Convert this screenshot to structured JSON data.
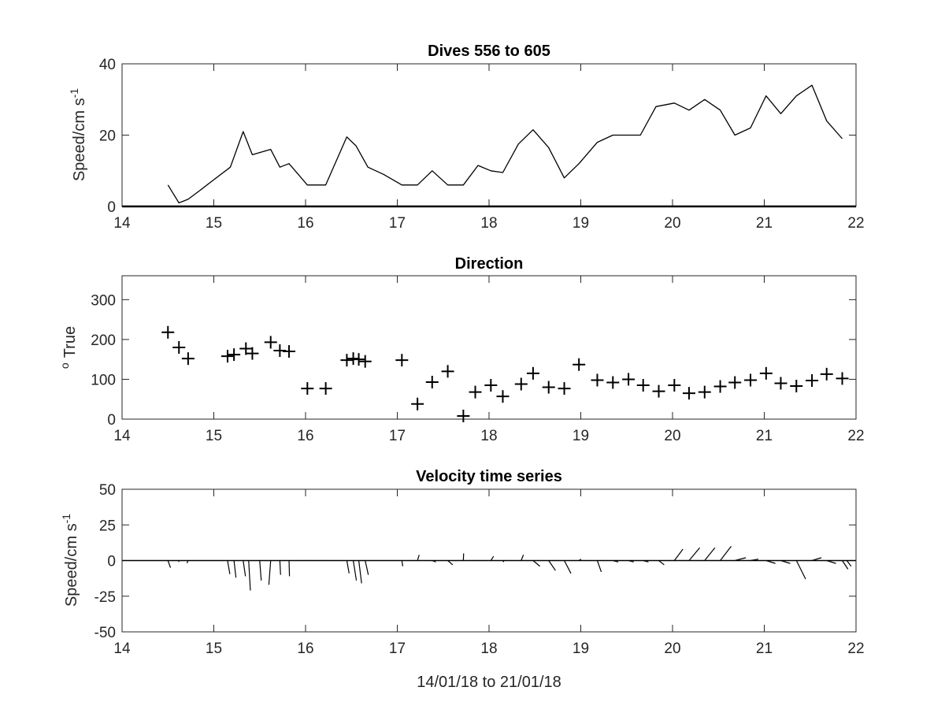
{
  "chart_data": [
    {
      "type": "line",
      "title": "Dives 556 to 605",
      "ylabel_base": "Speed/cm s",
      "ylabel_sup": "-1",
      "xlabel": "",
      "xlim": [
        14,
        22
      ],
      "ylim": [
        0,
        40
      ],
      "xticks": [
        "14",
        "15",
        "16",
        "17",
        "18",
        "19",
        "20",
        "21",
        "22"
      ],
      "yticks": [
        "0",
        "20",
        "40"
      ],
      "series": [
        {
          "x": [
            14.5,
            14.62,
            14.72,
            14.85,
            15.0,
            15.18,
            15.32,
            15.42,
            15.62,
            15.72,
            15.82,
            16.02,
            16.22,
            16.45,
            16.55,
            16.68,
            16.85,
            17.05,
            17.22,
            17.38,
            17.55,
            17.72,
            17.88,
            18.02,
            18.15,
            18.32,
            18.48,
            18.65,
            18.82,
            18.98,
            19.18,
            19.35,
            19.5,
            19.65,
            19.82,
            20.02,
            20.18,
            20.35,
            20.52,
            20.68,
            20.85,
            21.02,
            21.18,
            21.35,
            21.52,
            21.68,
            21.85
          ],
          "y": [
            6,
            1,
            2,
            4.5,
            7.5,
            11,
            21,
            14.5,
            16,
            11,
            12,
            6,
            6,
            19.5,
            17,
            11,
            9,
            6,
            6,
            10,
            6,
            6,
            11.5,
            10,
            9.5,
            17.5,
            21.5,
            16.5,
            8,
            12,
            18,
            20,
            20,
            20,
            28,
            29,
            27,
            30,
            27,
            20,
            22,
            31,
            26,
            31,
            34,
            24,
            19
          ]
        },
        {
          "x": [
            14,
            22
          ],
          "y": [
            0,
            0
          ]
        }
      ]
    },
    {
      "type": "scatter",
      "title": "Direction",
      "ylabel_base": "True",
      "ylabel_sup": "o",
      "xlabel": "",
      "xlim": [
        14,
        22
      ],
      "ylim": [
        0,
        360
      ],
      "xticks": [
        "14",
        "15",
        "16",
        "17",
        "18",
        "19",
        "20",
        "21",
        "22"
      ],
      "yticks": [
        "0",
        "100",
        "200",
        "300"
      ],
      "x": [
        14.5,
        14.62,
        14.72,
        15.15,
        15.22,
        15.35,
        15.42,
        15.62,
        15.72,
        15.82,
        16.02,
        16.22,
        16.45,
        16.52,
        16.58,
        16.65,
        17.05,
        17.22,
        17.38,
        17.55,
        17.72,
        17.85,
        18.02,
        18.15,
        18.35,
        18.48,
        18.65,
        18.82,
        18.98,
        19.18,
        19.35,
        19.52,
        19.68,
        19.85,
        20.02,
        20.18,
        20.35,
        20.52,
        20.68,
        20.85,
        21.02,
        21.18,
        21.35,
        21.52,
        21.68,
        21.85
      ],
      "y": [
        218,
        180,
        152,
        158,
        162,
        177,
        165,
        193,
        172,
        170,
        77,
        77,
        148,
        152,
        150,
        145,
        148,
        38,
        93,
        120,
        8,
        68,
        85,
        57,
        88,
        115,
        80,
        77,
        137,
        98,
        92,
        100,
        85,
        70,
        85,
        65,
        68,
        82,
        92,
        98,
        115,
        90,
        83,
        97,
        113,
        102
      ]
    },
    {
      "type": "line",
      "title": "Velocity time series",
      "ylabel_base": "Speed/cm s",
      "ylabel_sup": "-1",
      "xlabel": "14/01/18 to 21/01/18",
      "xlim": [
        14,
        22
      ],
      "ylim": [
        -50,
        50
      ],
      "xticks": [
        "14",
        "15",
        "16",
        "17",
        "18",
        "19",
        "20",
        "21",
        "22"
      ],
      "yticks": [
        "50",
        "25",
        "0",
        "-25",
        "-50"
      ],
      "sticks": [
        {
          "t": 14.5,
          "u": 1.8,
          "v": -5
        },
        {
          "t": 14.62,
          "u": -0.1,
          "v": -1
        },
        {
          "t": 14.72,
          "u": -0.8,
          "v": -1.8
        },
        {
          "t": 15.15,
          "u": 1.6,
          "v": -9.5
        },
        {
          "t": 15.22,
          "u": 1.4,
          "v": -12
        },
        {
          "t": 15.32,
          "u": 1.6,
          "v": -11
        },
        {
          "t": 15.38,
          "u": 1.2,
          "v": -21
        },
        {
          "t": 15.5,
          "u": 1.1,
          "v": -14
        },
        {
          "t": 15.62,
          "u": -1.3,
          "v": -17
        },
        {
          "t": 15.72,
          "u": 0.5,
          "v": -10
        },
        {
          "t": 15.82,
          "u": 0.3,
          "v": -11
        },
        {
          "t": 16.02,
          "u": 0.4,
          "v": 0
        },
        {
          "t": 16.22,
          "u": 0.4,
          "v": 0
        },
        {
          "t": 16.45,
          "u": 1.6,
          "v": -9
        },
        {
          "t": 16.52,
          "u": 2.2,
          "v": -14
        },
        {
          "t": 16.58,
          "u": 2.0,
          "v": -16
        },
        {
          "t": 16.65,
          "u": 2.2,
          "v": -10
        },
        {
          "t": 17.05,
          "u": 0.6,
          "v": -4
        },
        {
          "t": 17.22,
          "u": 1.2,
          "v": 4
        },
        {
          "t": 17.38,
          "u": 2.6,
          "v": -1
        },
        {
          "t": 17.55,
          "u": 3.5,
          "v": -3
        },
        {
          "t": 17.72,
          "u": 0.2,
          "v": 5
        },
        {
          "t": 17.85,
          "u": 0.3,
          "v": 0
        },
        {
          "t": 18.02,
          "u": 1.9,
          "v": 3
        },
        {
          "t": 18.15,
          "u": 0.7,
          "v": -1
        },
        {
          "t": 18.35,
          "u": 1.6,
          "v": 4
        },
        {
          "t": 18.48,
          "u": 4.8,
          "v": -4
        },
        {
          "t": 18.65,
          "u": 4.8,
          "v": -7
        },
        {
          "t": 18.82,
          "u": 4.7,
          "v": -9
        },
        {
          "t": 18.98,
          "u": 1.5,
          "v": 1
        },
        {
          "t": 19.18,
          "u": 2.8,
          "v": -8
        },
        {
          "t": 19.35,
          "u": 3.8,
          "v": -1
        },
        {
          "t": 19.52,
          "u": 3.7,
          "v": -1
        },
        {
          "t": 19.68,
          "u": 3.7,
          "v": -1
        },
        {
          "t": 19.85,
          "u": 3.8,
          "v": -3
        },
        {
          "t": 20.02,
          "u": 6.0,
          "v": 8
        },
        {
          "t": 20.18,
          "u": 7.5,
          "v": 9
        },
        {
          "t": 20.35,
          "u": 7.2,
          "v": 9
        },
        {
          "t": 20.52,
          "u": 7.7,
          "v": 10
        },
        {
          "t": 20.68,
          "u": 7.7,
          "v": 2
        },
        {
          "t": 20.85,
          "u": 5.5,
          "v": 1
        },
        {
          "t": 21.02,
          "u": 6.5,
          "v": -2
        },
        {
          "t": 21.18,
          "u": 6.6,
          "v": -2
        },
        {
          "t": 21.35,
          "u": 6.5,
          "v": -13
        },
        {
          "t": 21.52,
          "u": 6.6,
          "v": 2
        },
        {
          "t": 21.68,
          "u": 6.5,
          "v": -2
        },
        {
          "t": 21.85,
          "u": 4.0,
          "v": -6
        },
        {
          "t": 21.9,
          "u": 3.0,
          "v": -4
        }
      ]
    }
  ]
}
